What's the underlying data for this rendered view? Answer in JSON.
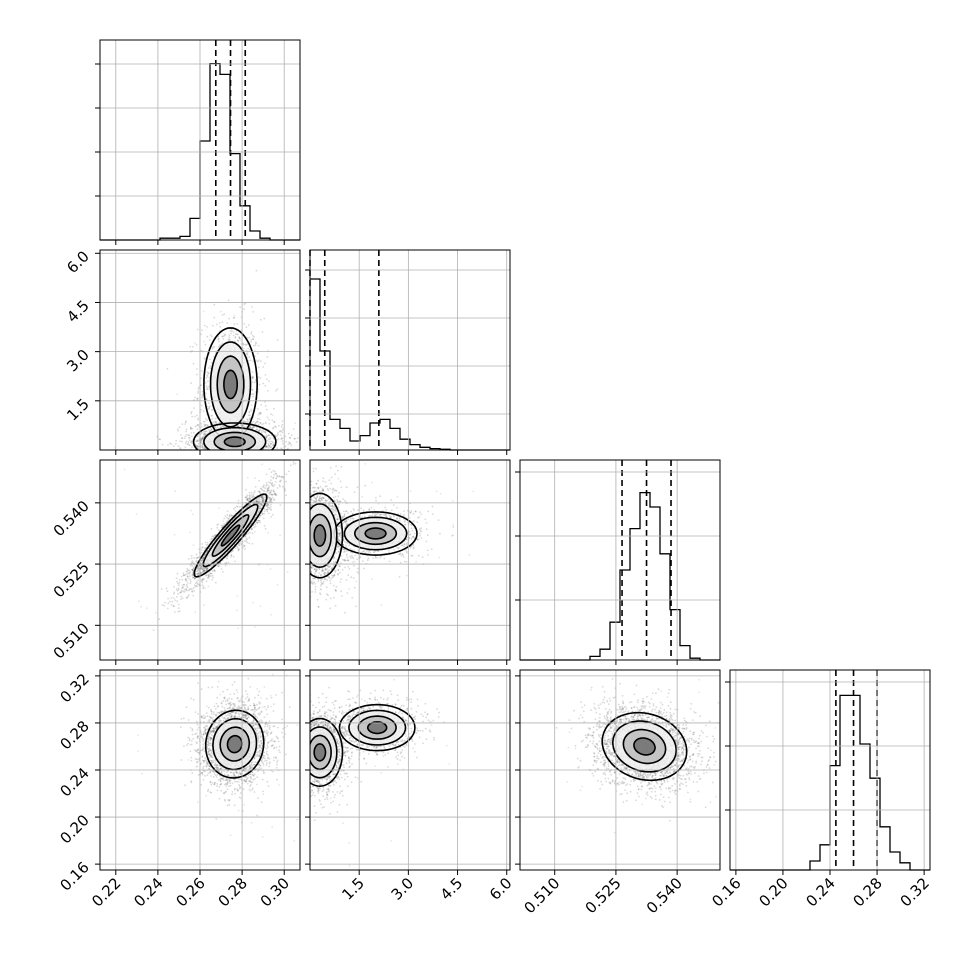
{
  "chart_data": {
    "type": "corner",
    "title": "",
    "grid": true,
    "colors": {
      "ink": "#000000",
      "grid": "#b0b0b0",
      "points": "#555555"
    },
    "params": [
      {
        "ticks": [
          0.22,
          0.24,
          0.26,
          0.28,
          0.3
        ],
        "tick_labels": [
          "0.22",
          "0.24",
          "0.26",
          "0.28",
          "0.30"
        ],
        "range": [
          0.2125,
          0.3075
        ]
      },
      {
        "ticks": [
          1.5,
          3.0,
          4.5,
          6.0
        ],
        "tick_labels": [
          "1.5",
          "3.0",
          "4.5",
          "6.0"
        ],
        "range": [
          0.0,
          6.1
        ]
      },
      {
        "ticks": [
          0.51,
          0.525,
          0.54
        ],
        "tick_labels": [
          "0.510",
          "0.525",
          "0.540"
        ],
        "range": [
          0.5015,
          0.5505
        ]
      },
      {
        "ticks": [
          0.16,
          0.2,
          0.24,
          0.28,
          0.32
        ],
        "tick_labels": [
          "0.16",
          "0.20",
          "0.24",
          "0.28",
          "0.32"
        ],
        "range": [
          0.155,
          0.325
        ]
      }
    ],
    "y_tick_labels_override": {
      "1": [
        "1.5",
        "3.0",
        "4.5",
        "6.0"
      ]
    },
    "histograms": [
      {
        "edges_start": 0.2125,
        "bin_width": 0.00475,
        "counts": [
          0,
          0,
          0,
          0,
          0,
          0,
          0.01,
          0.01,
          0.02,
          0.12,
          0.55,
          0.98,
          0.92,
          0.48,
          0.19,
          0.05,
          0.01,
          0,
          0,
          0
        ],
        "quantiles": [
          0.2675,
          0.2745,
          0.2815
        ],
        "yticks": [
          0.22,
          0.44,
          0.66,
          0.88
        ]
      },
      {
        "edges_start": 0.0,
        "bin_width": 0.305,
        "counts": [
          0.95,
          0.55,
          0.17,
          0.12,
          0.05,
          0.08,
          0.15,
          0.17,
          0.12,
          0.06,
          0.03,
          0.015,
          0.008,
          0.004,
          0,
          0,
          0,
          0,
          0,
          0
        ],
        "quantiles": [
          0.0,
          0.45,
          2.1
        ],
        "yticks": [
          0.18,
          0.42,
          0.66,
          0.9
        ]
      },
      {
        "edges_start": 0.5015,
        "bin_width": 0.00245,
        "counts": [
          0,
          0,
          0,
          0,
          0,
          0,
          0,
          0.02,
          0.06,
          0.21,
          0.5,
          0.73,
          0.93,
          0.85,
          0.59,
          0.28,
          0.08,
          0.01,
          0,
          0
        ],
        "quantiles": [
          0.5265,
          0.5325,
          0.5385
        ],
        "yticks": [
          0.3,
          0.62,
          0.94
        ]
      },
      {
        "edges_start": 0.155,
        "bin_width": 0.0085,
        "counts": [
          0,
          0,
          0,
          0,
          0,
          0,
          0,
          0,
          0.05,
          0.14,
          0.58,
          0.97,
          0.97,
          0.7,
          0.51,
          0.24,
          0.1,
          0.04,
          0,
          0
        ],
        "quantiles": [
          0.245,
          0.26,
          0.28
        ],
        "yticks": [
          0.3,
          0.62,
          0.94
        ]
      }
    ],
    "pairs": [
      {
        "row": 1,
        "col": 0,
        "modes": [
          {
            "cx": 0.2745,
            "cy": 2.0,
            "sx": 0.0055,
            "sy": 0.75,
            "rho": 0.0,
            "w": 0.35
          },
          {
            "cx": 0.2765,
            "cy": 0.25,
            "sx": 0.0085,
            "sy": 0.25,
            "rho": 0.0,
            "w": 0.65
          }
        ]
      },
      {
        "row": 2,
        "col": 0,
        "modes": [
          {
            "cx": 0.2745,
            "cy": 0.532,
            "sx": 0.0075,
            "sy": 0.0044,
            "rho": 0.93,
            "w": 1.0
          }
        ]
      },
      {
        "row": 2,
        "col": 1,
        "modes": [
          {
            "cx": 2.0,
            "cy": 0.5325,
            "sx": 0.55,
            "sy": 0.0023,
            "rho": 0.0,
            "w": 0.35
          },
          {
            "cx": 0.3,
            "cy": 0.532,
            "sx": 0.3,
            "sy": 0.0045,
            "rho": 0.0,
            "w": 0.65
          }
        ]
      },
      {
        "row": 3,
        "col": 0,
        "modes": [
          {
            "cx": 0.2765,
            "cy": 0.262,
            "sx": 0.006,
            "sy": 0.0125,
            "rho": 0.05,
            "w": 1.0
          }
        ]
      },
      {
        "row": 3,
        "col": 1,
        "modes": [
          {
            "cx": 2.05,
            "cy": 0.276,
            "sx": 0.5,
            "sy": 0.0085,
            "rho": 0.0,
            "w": 0.35
          },
          {
            "cx": 0.3,
            "cy": 0.255,
            "sx": 0.3,
            "sy": 0.0125,
            "rho": 0.0,
            "w": 0.65
          }
        ]
      },
      {
        "row": 3,
        "col": 2,
        "modes": [
          {
            "cx": 0.532,
            "cy": 0.26,
            "sx": 0.0045,
            "sy": 0.0125,
            "rho": -0.15,
            "w": 1.0
          }
        ]
      }
    ]
  }
}
